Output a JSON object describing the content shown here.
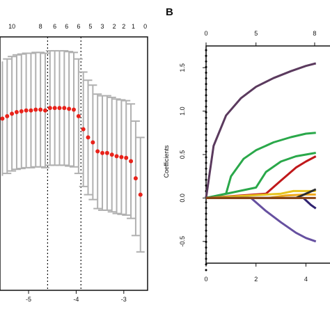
{
  "chart_data": [
    {
      "type": "scatter",
      "panel": "",
      "xlabel": "",
      "ylabel": "",
      "xlim": [
        -5.6,
        -2.5
      ],
      "x_ticks": [
        "-5",
        "-4",
        "-3"
      ],
      "top_ticks": [
        {
          "x": -5.35,
          "label": "10"
        },
        {
          "x": -4.75,
          "label": "8"
        },
        {
          "x": -4.45,
          "label": "6"
        },
        {
          "x": -4.2,
          "label": "6"
        },
        {
          "x": -3.95,
          "label": "6"
        },
        {
          "x": -3.7,
          "label": "5"
        },
        {
          "x": -3.45,
          "label": "3"
        },
        {
          "x": -3.2,
          "label": "2"
        },
        {
          "x": -3.0,
          "label": "2"
        },
        {
          "x": -2.8,
          "label": "1"
        },
        {
          "x": -2.55,
          "label": "0"
        }
      ],
      "vlines": [
        -4.6,
        -3.9
      ],
      "points": [
        {
          "x": -5.55,
          "y": 0.62,
          "lo": 0.55,
          "hi": 0.69
        },
        {
          "x": -5.45,
          "y": 0.623,
          "lo": 0.553,
          "hi": 0.693
        },
        {
          "x": -5.35,
          "y": 0.626,
          "lo": 0.556,
          "hi": 0.696
        },
        {
          "x": -5.25,
          "y": 0.628,
          "lo": 0.558,
          "hi": 0.698
        },
        {
          "x": -5.15,
          "y": 0.629,
          "lo": 0.559,
          "hi": 0.699
        },
        {
          "x": -5.05,
          "y": 0.63,
          "lo": 0.56,
          "hi": 0.7
        },
        {
          "x": -4.95,
          "y": 0.63,
          "lo": 0.56,
          "hi": 0.7
        },
        {
          "x": -4.85,
          "y": 0.631,
          "lo": 0.561,
          "hi": 0.701
        },
        {
          "x": -4.75,
          "y": 0.631,
          "lo": 0.561,
          "hi": 0.701
        },
        {
          "x": -4.65,
          "y": 0.63,
          "lo": 0.56,
          "hi": 0.7
        },
        {
          "x": -4.55,
          "y": 0.633,
          "lo": 0.563,
          "hi": 0.703
        },
        {
          "x": -4.45,
          "y": 0.633,
          "lo": 0.563,
          "hi": 0.703
        },
        {
          "x": -4.35,
          "y": 0.633,
          "lo": 0.563,
          "hi": 0.703
        },
        {
          "x": -4.25,
          "y": 0.633,
          "lo": 0.563,
          "hi": 0.703
        },
        {
          "x": -4.15,
          "y": 0.632,
          "lo": 0.562,
          "hi": 0.702
        },
        {
          "x": -4.05,
          "y": 0.631,
          "lo": 0.561,
          "hi": 0.701
        },
        {
          "x": -3.95,
          "y": 0.623,
          "lo": 0.553,
          "hi": 0.693
        },
        {
          "x": -3.85,
          "y": 0.607,
          "lo": 0.537,
          "hi": 0.677
        },
        {
          "x": -3.75,
          "y": 0.597,
          "lo": 0.527,
          "hi": 0.667
        },
        {
          "x": -3.65,
          "y": 0.591,
          "lo": 0.521,
          "hi": 0.661
        },
        {
          "x": -3.55,
          "y": 0.58,
          "lo": 0.51,
          "hi": 0.65
        },
        {
          "x": -3.45,
          "y": 0.578,
          "lo": 0.508,
          "hi": 0.648
        },
        {
          "x": -3.35,
          "y": 0.578,
          "lo": 0.508,
          "hi": 0.648
        },
        {
          "x": -3.25,
          "y": 0.576,
          "lo": 0.506,
          "hi": 0.646
        },
        {
          "x": -3.15,
          "y": 0.574,
          "lo": 0.504,
          "hi": 0.644
        },
        {
          "x": -3.05,
          "y": 0.573,
          "lo": 0.503,
          "hi": 0.643
        },
        {
          "x": -2.95,
          "y": 0.572,
          "lo": 0.502,
          "hi": 0.642
        },
        {
          "x": -2.85,
          "y": 0.568,
          "lo": 0.498,
          "hi": 0.638
        },
        {
          "x": -2.75,
          "y": 0.547,
          "lo": 0.477,
          "hi": 0.617
        },
        {
          "x": -2.65,
          "y": 0.527,
          "lo": 0.457,
          "hi": 0.597
        }
      ],
      "point_color": "#e8231b",
      "errorbar_color": "#b0b0b0"
    },
    {
      "type": "line",
      "panel": "B",
      "xlabel": "",
      "ylabel": "Coefficients",
      "xlim": [
        0,
        5.3
      ],
      "ylim": [
        -0.75,
        1.75
      ],
      "x_ticks": [
        "0",
        "2",
        "4"
      ],
      "top_ticks": [
        {
          "x": 0,
          "label": "0"
        },
        {
          "x": 2,
          "label": "5"
        },
        {
          "x": 4.35,
          "label": "8"
        }
      ],
      "y_ticks": [
        "-0.5",
        "0.0",
        "0.5",
        "1.0",
        "1.5"
      ],
      "series": [
        {
          "color": "#5b3a5e",
          "x": [
            0,
            0.3,
            0.8,
            1.4,
            2.0,
            2.7,
            3.4,
            4.0,
            4.4
          ],
          "y": [
            0,
            0.6,
            0.95,
            1.15,
            1.28,
            1.38,
            1.46,
            1.52,
            1.55
          ]
        },
        {
          "color": "#2aa84a",
          "x": [
            0,
            0.8,
            1.0,
            1.5,
            2.0,
            2.7,
            3.4,
            4.0,
            4.4
          ],
          "y": [
            0,
            0.05,
            0.25,
            0.45,
            0.55,
            0.64,
            0.7,
            0.74,
            0.75
          ]
        },
        {
          "color": "#2aa84a",
          "x": [
            0,
            2.0,
            2.4,
            3.0,
            3.6,
            4.0,
            4.4
          ],
          "y": [
            0,
            0.12,
            0.3,
            0.42,
            0.48,
            0.5,
            0.52
          ]
        },
        {
          "color": "#c0181b",
          "x": [
            0,
            2.4,
            3.0,
            3.6,
            4.0,
            4.4
          ],
          "y": [
            0,
            0.05,
            0.2,
            0.35,
            0.42,
            0.48
          ]
        },
        {
          "color": "#e6c31e",
          "x": [
            0,
            3.0,
            3.5,
            4.0,
            4.4
          ],
          "y": [
            0,
            0.05,
            0.08,
            0.08,
            0.08
          ]
        },
        {
          "color": "#f0a81a",
          "x": [
            0,
            2.5,
            3.2,
            4.0,
            4.4
          ],
          "y": [
            0,
            0.0,
            0.03,
            0.04,
            0.04
          ]
        },
        {
          "color": "#2f2270",
          "x": [
            0,
            3.9,
            4.2,
            4.4
          ],
          "y": [
            0,
            0.0,
            -0.08,
            -0.12
          ]
        },
        {
          "color": "#6650a0",
          "x": [
            0,
            1.8,
            2.4,
            3.0,
            3.6,
            4.0,
            4.4
          ],
          "y": [
            0,
            0,
            -0.15,
            -0.28,
            -0.4,
            -0.46,
            -0.5
          ]
        },
        {
          "color": "#2b2b2b",
          "x": [
            0,
            3.6,
            4.0,
            4.4
          ],
          "y": [
            0,
            0,
            0.05,
            0.1
          ]
        },
        {
          "color": "#8b4513",
          "x": [
            0,
            4.4
          ],
          "y": [
            0,
            0
          ]
        }
      ]
    }
  ]
}
